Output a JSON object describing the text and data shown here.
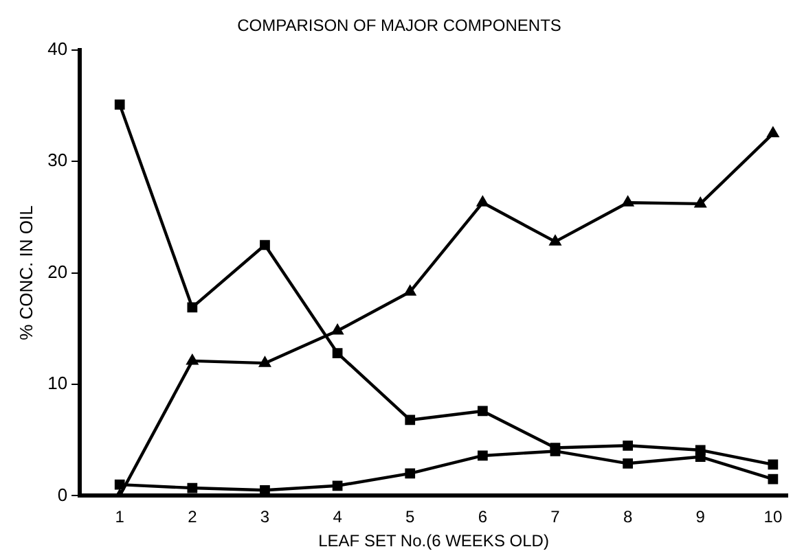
{
  "chart_data": {
    "type": "line",
    "title": "COMPARISON OF MAJOR COMPONENTS",
    "xlabel": "LEAF SET No.(6 WEEKS OLD)",
    "ylabel": "% CONC. IN OIL",
    "x": [
      1,
      2,
      3,
      4,
      5,
      6,
      7,
      8,
      9,
      10
    ],
    "xlim": [
      0.45,
      10.2
    ],
    "xticks": [
      1,
      2,
      3,
      4,
      5,
      6,
      7,
      8,
      9,
      10
    ],
    "ylim": [
      0,
      40
    ],
    "yticks": [
      0,
      10,
      20,
      30,
      40
    ],
    "grid": false,
    "legend": false,
    "line_style": "solid",
    "series": [
      {
        "color": "#000000",
        "marker": "square",
        "values": [
          35.1,
          16.9,
          22.5,
          12.8,
          6.8,
          7.6,
          4.3,
          4.5,
          4.1,
          2.8
        ]
      },
      {
        "color": "#000000",
        "marker": "triangle",
        "values": [
          0,
          12.1,
          11.9,
          14.8,
          18.3,
          26.3,
          22.8,
          26.3,
          26.2,
          32.5
        ]
      },
      {
        "color": "#000000",
        "marker": "square",
        "values": [
          1.0,
          0.7,
          0.5,
          0.9,
          2.0,
          3.6,
          4.0,
          2.9,
          3.5,
          1.5
        ]
      }
    ]
  }
}
